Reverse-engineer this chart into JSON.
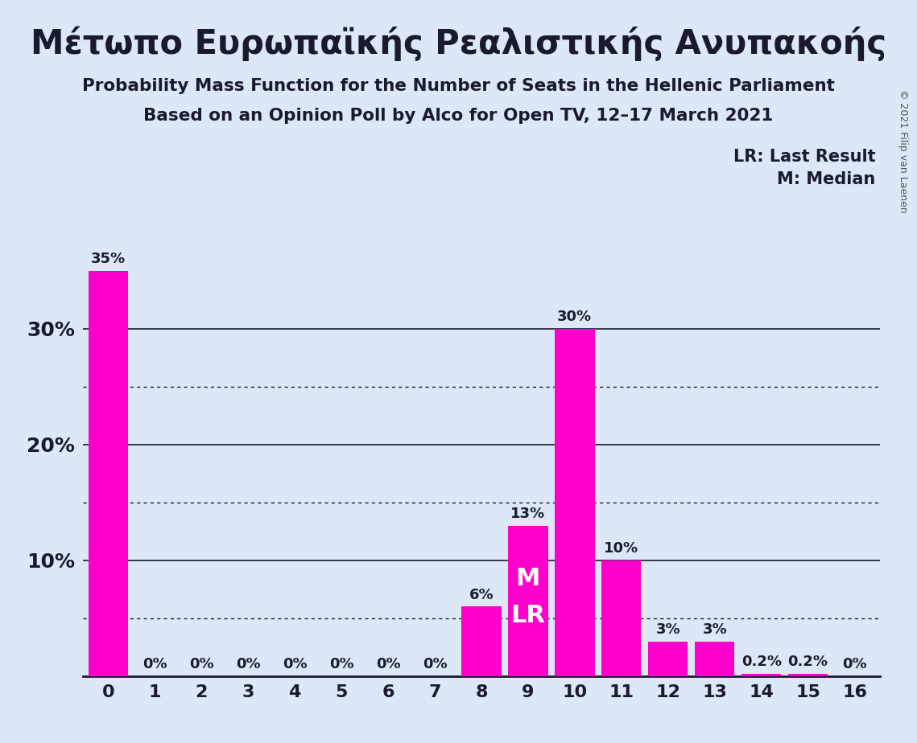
{
  "title": "Μέτωπο Ευρωπαϊκής Ρεαλιστικής Ανυπακοής",
  "subtitle1": "Probability Mass Function for the Number of Seats in the Hellenic Parliament",
  "subtitle2": "Based on an Opinion Poll by Alco for Open TV, 12–17 March 2021",
  "copyright": "© 2021 Filip van Laenen",
  "categories": [
    0,
    1,
    2,
    3,
    4,
    5,
    6,
    7,
    8,
    9,
    10,
    11,
    12,
    13,
    14,
    15,
    16
  ],
  "values": [
    0.35,
    0.0,
    0.0,
    0.0,
    0.0,
    0.0,
    0.0,
    0.0,
    0.06,
    0.13,
    0.3,
    0.1,
    0.03,
    0.03,
    0.002,
    0.002,
    0.0
  ],
  "labels": [
    "35%",
    "0%",
    "0%",
    "0%",
    "0%",
    "0%",
    "0%",
    "0%",
    "6%",
    "13%",
    "30%",
    "10%",
    "3%",
    "3%",
    "0.2%",
    "0.2%",
    "0%"
  ],
  "bar_color": "#FF00CC",
  "background_color": "#DCE8F5",
  "median_bar_idx": 9,
  "lr_bar_idx": 9,
  "legend_lr": "LR: Last Result",
  "legend_m": "M: Median",
  "ylim": [
    0,
    0.385
  ],
  "grid_yticks_solid": [
    0.1,
    0.2,
    0.3
  ],
  "grid_yticks_dotted": [
    0.05,
    0.15,
    0.25
  ]
}
